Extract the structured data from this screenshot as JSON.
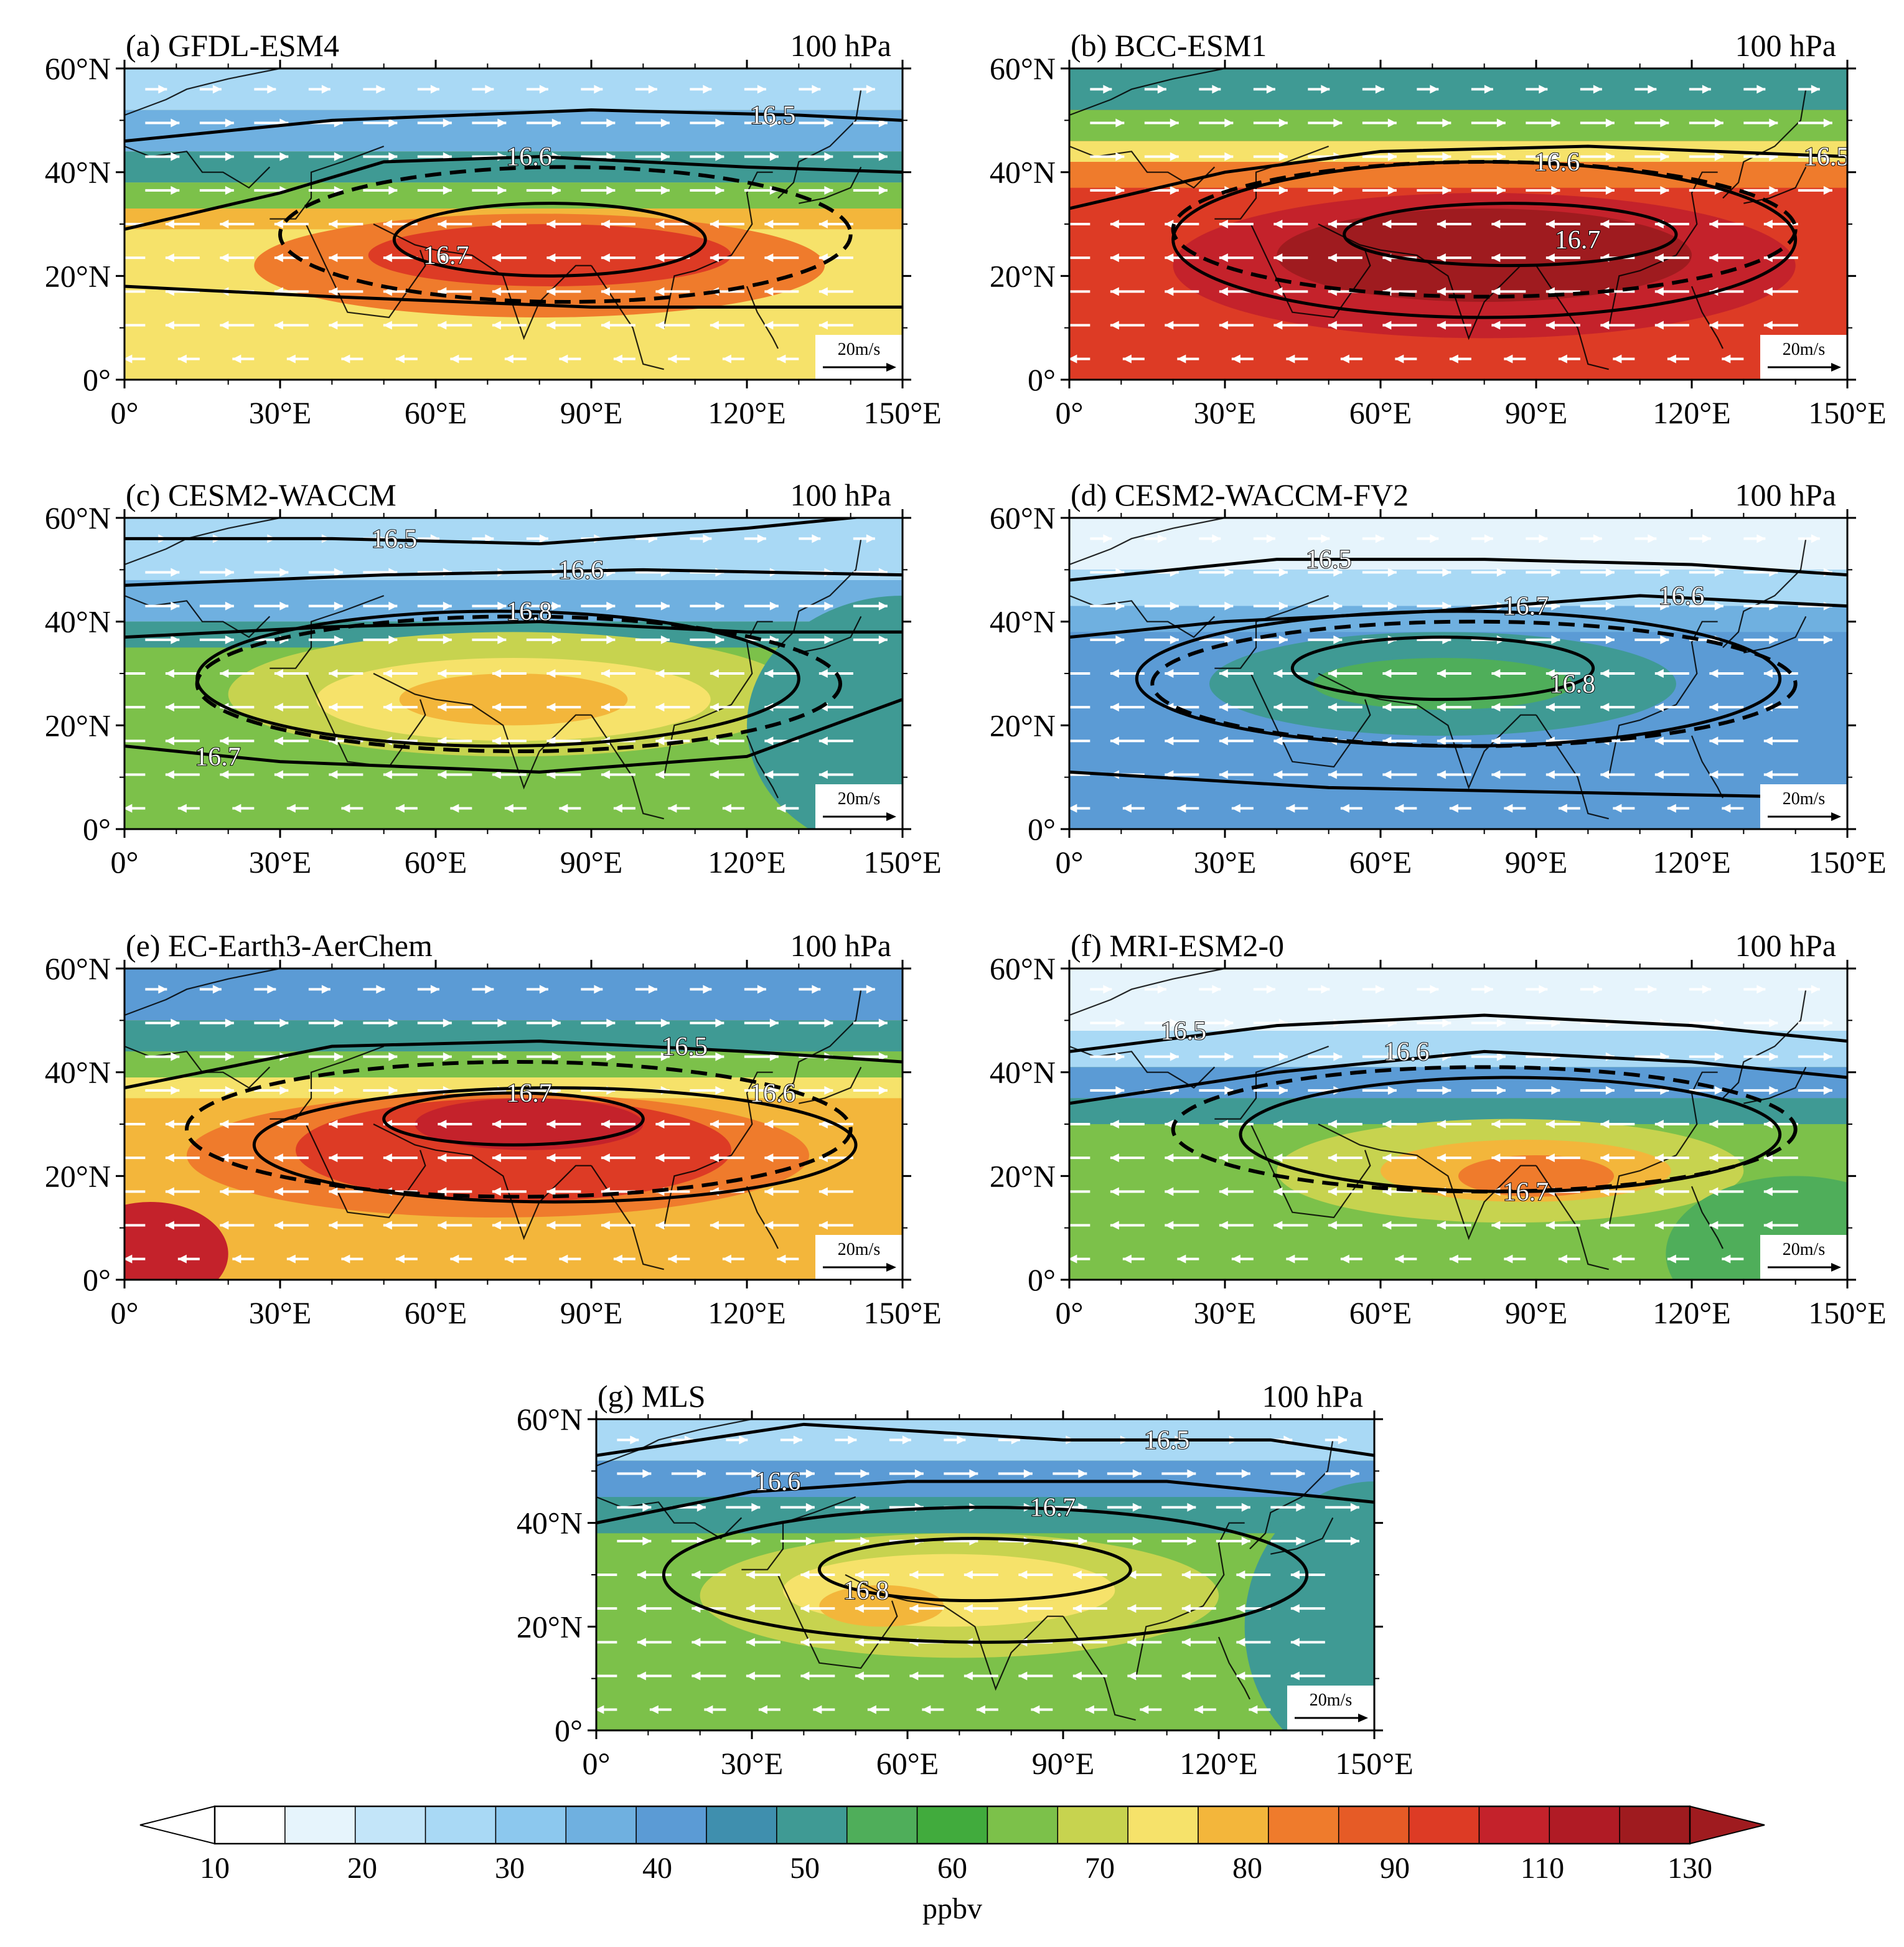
{
  "figure": {
    "level_label": "100 hPa",
    "x_ticks": [
      "0°",
      "30°E",
      "60°E",
      "90°E",
      "120°E",
      "150°E"
    ],
    "y_ticks": [
      "0°",
      "20°N",
      "40°N",
      "60°N"
    ],
    "wind_scale_label": "20m/s"
  },
  "panels": [
    {
      "title": "(a) GFDL-ESM4",
      "level": "100 hPa",
      "background": "#f6e26a",
      "bands": [
        {
          "lat_top": 60,
          "lat_bottom": 52,
          "color": "#a9d9f5"
        },
        {
          "lat_top": 52,
          "lat_bottom": 44,
          "color": "#6fb0e0"
        },
        {
          "lat_top": 44,
          "lat_bottom": 38,
          "color": "#3f9a94"
        },
        {
          "lat_top": 38,
          "lat_bottom": 33,
          "color": "#7cc14a"
        },
        {
          "lat_top": 33,
          "lat_bottom": 29,
          "color": "#f3b63b"
        }
      ],
      "blobs": [
        {
          "lon": 80,
          "lat": 22,
          "rlon": 55,
          "rlat": 10,
          "color": "#ef7b2c"
        },
        {
          "lon": 82,
          "lat": 24,
          "rlon": 35,
          "rlat": 6,
          "color": "#dd3b25"
        }
      ],
      "contours": [
        {
          "label": "16.5",
          "label_lon": 125,
          "label_lat": 51,
          "points": [
            [
              0,
              46
            ],
            [
              40,
              50
            ],
            [
              90,
              52
            ],
            [
              130,
              51
            ],
            [
              150,
              50
            ]
          ]
        },
        {
          "label": "16.6",
          "label_lon": 78,
          "label_lat": 43,
          "points": [
            [
              0,
              29
            ],
            [
              30,
              36
            ],
            [
              50,
              42
            ],
            [
              80,
              43
            ],
            [
              120,
              41
            ],
            [
              150,
              40
            ]
          ]
        },
        {
          "label": "16.7",
          "label_lon": 62,
          "label_lat": 24,
          "ellipse": {
            "lon": 82,
            "lat": 27,
            "rlon": 30,
            "rlat": 7
          }
        },
        {
          "label": "",
          "points": [
            [
              0,
              18
            ],
            [
              40,
              16
            ],
            [
              90,
              14
            ],
            [
              150,
              14
            ]
          ]
        }
      ],
      "dashed": {
        "lon": 85,
        "lat": 28,
        "rlon": 55,
        "rlat": 13
      }
    },
    {
      "title": "(b) BCC-ESM1",
      "level": "100 hPa",
      "background": "#dd3b25",
      "bands": [
        {
          "lat_top": 60,
          "lat_bottom": 52,
          "color": "#3f9a94"
        },
        {
          "lat_top": 52,
          "lat_bottom": 46,
          "color": "#7cc14a"
        },
        {
          "lat_top": 46,
          "lat_bottom": 42,
          "color": "#f6e26a"
        },
        {
          "lat_top": 42,
          "lat_bottom": 37,
          "color": "#ef7b2c"
        }
      ],
      "blobs": [
        {
          "lon": 80,
          "lat": 22,
          "rlon": 60,
          "rlat": 14,
          "color": "#c4222b"
        },
        {
          "lon": 80,
          "lat": 24,
          "rlon": 40,
          "rlat": 9,
          "color": "#9f1b1f"
        }
      ],
      "contours": [
        {
          "label": "16.5",
          "label_lon": 146,
          "label_lat": 43,
          "points": [
            [
              0,
              33
            ],
            [
              30,
              40
            ],
            [
              60,
              44
            ],
            [
              100,
              45
            ],
            [
              150,
              43
            ]
          ]
        },
        {
          "label": "16.6",
          "label_lon": 94,
          "label_lat": 42,
          "ellipse": {
            "lon": 80,
            "lat": 27,
            "rlon": 60,
            "rlat": 15
          }
        },
        {
          "label": "16.7",
          "label_lon": 98,
          "label_lat": 27,
          "ellipse": {
            "lon": 85,
            "lat": 28,
            "rlon": 32,
            "rlat": 6
          }
        }
      ],
      "dashed": {
        "lon": 80,
        "lat": 29,
        "rlon": 60,
        "rlat": 13
      }
    },
    {
      "title": "(c) CESM2-WACCM",
      "level": "100 hPa",
      "background": "#7cc14a",
      "bands": [
        {
          "lat_top": 60,
          "lat_bottom": 48,
          "color": "#a9d9f5"
        },
        {
          "lat_top": 48,
          "lat_bottom": 40,
          "color": "#6fb0e0"
        },
        {
          "lat_top": 40,
          "lat_bottom": 35,
          "color": "#3f9a94"
        }
      ],
      "blobs": [
        {
          "lon": 75,
          "lat": 26,
          "rlon": 55,
          "rlat": 12,
          "color": "#c7d34f"
        },
        {
          "lon": 75,
          "lat": 25,
          "rlon": 38,
          "rlat": 8,
          "color": "#f6e26a"
        },
        {
          "lon": 75,
          "lat": 25,
          "rlon": 22,
          "rlat": 5,
          "color": "#f3b63b"
        },
        {
          "lon": 150,
          "lat": 20,
          "rlon": 30,
          "rlat": 25,
          "color": "#3f9a94"
        }
      ],
      "contours": [
        {
          "label": "16.5",
          "label_lon": 52,
          "label_lat": 56,
          "points": [
            [
              0,
              56
            ],
            [
              40,
              56
            ],
            [
              80,
              55
            ],
            [
              120,
              58
            ],
            [
              150,
              61
            ]
          ]
        },
        {
          "label": "16.6",
          "label_lon": 88,
          "label_lat": 50,
          "points": [
            [
              0,
              47
            ],
            [
              50,
              49
            ],
            [
              100,
              50
            ],
            [
              150,
              49
            ]
          ]
        },
        {
          "label": "16.8",
          "label_lon": 78,
          "label_lat": 42,
          "ellipse": {
            "lon": 72,
            "lat": 29,
            "rlon": 58,
            "rlat": 13
          }
        },
        {
          "label": "16.7",
          "label_lon": 18,
          "label_lat": 14,
          "points": [
            [
              0,
              16
            ],
            [
              30,
              13
            ],
            [
              80,
              11
            ],
            [
              120,
              14
            ],
            [
              150,
              25
            ]
          ]
        },
        {
          "label": "",
          "points": [
            [
              0,
              37
            ],
            [
              40,
              39
            ],
            [
              80,
              40
            ],
            [
              120,
              38
            ],
            [
              150,
              38
            ]
          ]
        }
      ],
      "dashed": {
        "lon": 76,
        "lat": 28,
        "rlon": 62,
        "rlat": 13
      }
    },
    {
      "title": "(d) CESM2-WACCM-FV2",
      "level": "100 hPa",
      "background": "#5b9bd5",
      "bands": [
        {
          "lat_top": 60,
          "lat_bottom": 50,
          "color": "#e6f4fc"
        },
        {
          "lat_top": 50,
          "lat_bottom": 43,
          "color": "#a9d9f5"
        },
        {
          "lat_top": 43,
          "lat_bottom": 38,
          "color": "#6fb0e0"
        }
      ],
      "blobs": [
        {
          "lon": 72,
          "lat": 28,
          "rlon": 45,
          "rlat": 10,
          "color": "#3f9a94"
        },
        {
          "lon": 72,
          "lat": 28,
          "rlon": 25,
          "rlat": 5,
          "color": "#4fae5a"
        }
      ],
      "contours": [
        {
          "label": "16.5",
          "label_lon": 50,
          "label_lat": 52,
          "points": [
            [
              0,
              48
            ],
            [
              40,
              52
            ],
            [
              80,
              52
            ],
            [
              120,
              51
            ],
            [
              150,
              49
            ]
          ]
        },
        {
          "label": "16.6",
          "label_lon": 118,
          "label_lat": 45,
          "points": [
            [
              0,
              37
            ],
            [
              30,
              40
            ],
            [
              70,
              42
            ],
            [
              110,
              45
            ],
            [
              150,
              43
            ]
          ]
        },
        {
          "label": "16.7",
          "label_lon": 88,
          "label_lat": 43,
          "ellipse": {
            "lon": 75,
            "lat": 29,
            "rlon": 62,
            "rlat": 13
          }
        },
        {
          "label": "16.8",
          "label_lon": 97,
          "label_lat": 28,
          "ellipse": {
            "lon": 72,
            "lat": 31,
            "rlon": 29,
            "rlat": 6
          }
        },
        {
          "label": "",
          "points": [
            [
              0,
              11
            ],
            [
              50,
              8
            ],
            [
              100,
              7
            ],
            [
              150,
              6
            ]
          ]
        }
      ],
      "dashed": {
        "lon": 78,
        "lat": 28,
        "rlon": 62,
        "rlat": 12
      }
    },
    {
      "title": "(e) EC-Earth3-AerChem",
      "level": "100 hPa",
      "background": "#f3b63b",
      "bands": [
        {
          "lat_top": 60,
          "lat_bottom": 50,
          "color": "#5b9bd5"
        },
        {
          "lat_top": 50,
          "lat_bottom": 44,
          "color": "#3f9a94"
        },
        {
          "lat_top": 44,
          "lat_bottom": 39,
          "color": "#7cc14a"
        },
        {
          "lat_top": 39,
          "lat_bottom": 35,
          "color": "#f6e26a"
        }
      ],
      "blobs": [
        {
          "lon": 72,
          "lat": 24,
          "rlon": 60,
          "rlat": 12,
          "color": "#ef7b2c"
        },
        {
          "lon": 75,
          "lat": 25,
          "rlon": 42,
          "rlat": 10,
          "color": "#dd3b25"
        },
        {
          "lon": 78,
          "lat": 30,
          "rlon": 22,
          "rlat": 5,
          "color": "#c4222b"
        },
        {
          "lon": 5,
          "lat": 5,
          "rlon": 15,
          "rlat": 10,
          "color": "#c4222b"
        }
      ],
      "contours": [
        {
          "label": "16.5",
          "label_lon": 108,
          "label_lat": 45,
          "points": [
            [
              0,
              37
            ],
            [
              40,
              45
            ],
            [
              80,
              46
            ],
            [
              120,
              44
            ],
            [
              150,
              42
            ]
          ]
        },
        {
          "label": "16.6",
          "label_lon": 125,
          "label_lat": 36,
          "ellipse": {
            "lon": 83,
            "lat": 26,
            "rlon": 58,
            "rlat": 11
          }
        },
        {
          "label": "16.7",
          "label_lon": 78,
          "label_lat": 36,
          "ellipse": {
            "lon": 75,
            "lat": 31,
            "rlon": 25,
            "rlat": 5
          }
        }
      ],
      "dashed": {
        "lon": 76,
        "lat": 29,
        "rlon": 64,
        "rlat": 13
      }
    },
    {
      "title": "(f) MRI-ESM2-0",
      "level": "100 hPa",
      "background": "#7cc14a",
      "bands": [
        {
          "lat_top": 60,
          "lat_bottom": 48,
          "color": "#e6f4fc"
        },
        {
          "lat_top": 48,
          "lat_bottom": 41,
          "color": "#a9d9f5"
        },
        {
          "lat_top": 41,
          "lat_bottom": 35,
          "color": "#5b9bd5"
        },
        {
          "lat_top": 35,
          "lat_bottom": 30,
          "color": "#3f9a94"
        }
      ],
      "blobs": [
        {
          "lon": 85,
          "lat": 21,
          "rlon": 45,
          "rlat": 10,
          "color": "#c7d34f"
        },
        {
          "lon": 88,
          "lat": 21,
          "rlon": 28,
          "rlat": 6,
          "color": "#f3b63b"
        },
        {
          "lon": 90,
          "lat": 20,
          "rlon": 15,
          "rlat": 4,
          "color": "#ef7b2c"
        },
        {
          "lon": 140,
          "lat": 5,
          "rlon": 25,
          "rlat": 15,
          "color": "#4fae5a"
        }
      ],
      "contours": [
        {
          "label": "16.5",
          "label_lon": 22,
          "label_lat": 48,
          "points": [
            [
              0,
              44
            ],
            [
              40,
              49
            ],
            [
              80,
              51
            ],
            [
              120,
              49
            ],
            [
              150,
              46
            ]
          ]
        },
        {
          "label": "16.6",
          "label_lon": 65,
          "label_lat": 44,
          "points": [
            [
              0,
              34
            ],
            [
              40,
              40
            ],
            [
              80,
              44
            ],
            [
              120,
              42
            ],
            [
              150,
              39
            ]
          ]
        },
        {
          "label": "16.7",
          "label_lon": 88,
          "label_lat": 17,
          "ellipse": {
            "lon": 85,
            "lat": 28,
            "rlon": 52,
            "rlat": 11
          }
        }
      ],
      "dashed": {
        "lon": 80,
        "lat": 29,
        "rlon": 60,
        "rlat": 12
      }
    },
    {
      "title": "(g) MLS",
      "level": "100 hPa",
      "background": "#7cc14a",
      "bands": [
        {
          "lat_top": 60,
          "lat_bottom": 52,
          "color": "#a9d9f5"
        },
        {
          "lat_top": 52,
          "lat_bottom": 45,
          "color": "#5b9bd5"
        },
        {
          "lat_top": 45,
          "lat_bottom": 38,
          "color": "#3f9a94"
        }
      ],
      "blobs": [
        {
          "lon": 70,
          "lat": 26,
          "rlon": 50,
          "rlat": 12,
          "color": "#c7d34f"
        },
        {
          "lon": 68,
          "lat": 27,
          "rlon": 32,
          "rlat": 7,
          "color": "#f6e26a"
        },
        {
          "lon": 55,
          "lat": 24,
          "rlon": 12,
          "rlat": 4,
          "color": "#f3b63b"
        },
        {
          "lon": 150,
          "lat": 20,
          "rlon": 25,
          "rlat": 28,
          "color": "#3f9a94"
        }
      ],
      "contours": [
        {
          "label": "16.5",
          "label_lon": 110,
          "label_lat": 56,
          "points": [
            [
              0,
              53
            ],
            [
              40,
              59
            ],
            [
              90,
              56
            ],
            [
              130,
              56
            ],
            [
              150,
              53
            ]
          ]
        },
        {
          "label": "16.6",
          "label_lon": 35,
          "label_lat": 48,
          "points": [
            [
              0,
              40
            ],
            [
              30,
              46
            ],
            [
              60,
              48
            ],
            [
              110,
              48
            ],
            [
              150,
              44
            ]
          ]
        },
        {
          "label": "16.7",
          "label_lon": 88,
          "label_lat": 43,
          "ellipse": {
            "lon": 75,
            "lat": 30,
            "rlon": 62,
            "rlat": 13
          }
        },
        {
          "label": "16.8",
          "label_lon": 52,
          "label_lat": 27,
          "ellipse": {
            "lon": 73,
            "lat": 31,
            "rlon": 30,
            "rlat": 6
          }
        }
      ],
      "dashed": null
    }
  ],
  "colorbar": {
    "unit_label": "ppbv",
    "tick_labels": [
      "10",
      "20",
      "30",
      "40",
      "50",
      "60",
      "70",
      "80",
      "90",
      "110",
      "130"
    ],
    "colors": [
      "#ffffff",
      "#e6f4fc",
      "#c3e5f9",
      "#a9d9f5",
      "#8cc8ee",
      "#6fb0e0",
      "#5b9bd5",
      "#3f8fae",
      "#3f9a94",
      "#4fae5a",
      "#41ab3d",
      "#7cc14a",
      "#c7d34f",
      "#f6e26a",
      "#f3b63b",
      "#ef7b2c",
      "#e65b26",
      "#dd3b25",
      "#c4222b",
      "#b01b25",
      "#9f1b1f"
    ],
    "low_arrow_color": "#ffffff",
    "high_arrow_color": "#9f1b1f"
  }
}
